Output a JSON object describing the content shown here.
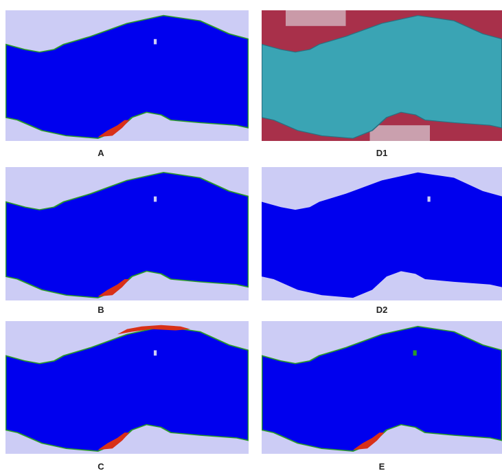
{
  "panels": [
    {
      "label": "A"
    },
    {
      "label": "D1"
    },
    {
      "label": "B"
    },
    {
      "label": "D2"
    },
    {
      "label": "C"
    },
    {
      "label": "E"
    }
  ]
}
